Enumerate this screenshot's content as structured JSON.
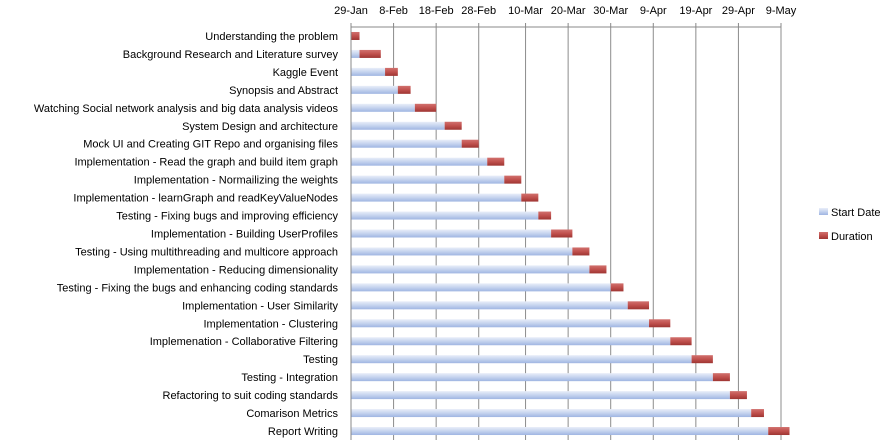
{
  "chart_data": {
    "type": "bar",
    "orientation": "horizontal",
    "stacked": true,
    "x_axis_position": "top",
    "grid": "vertical-major",
    "legend_placement": "right",
    "x_tick_labels": [
      "29-Jan",
      "8-Feb",
      "18-Feb",
      "28-Feb",
      "10-Mar",
      "20-Mar",
      "30-Mar",
      "9-Apr",
      "19-Apr",
      "29-Apr",
      "9-May"
    ],
    "xlim": [
      "29-Jan",
      "9-May"
    ],
    "categories": [
      "Understanding the problem",
      "Background Research and Literature survey",
      "Kaggle Event",
      "Synopsis and Abstract",
      "Watching Social network analysis and big data analysis videos",
      "System Design and architecture",
      "Mock UI and Creating GIT Repo and organising files",
      "Implementation - Read the graph and build item graph",
      "Implementation  - Normailizing the weights",
      "Implementation - learnGraph and readKeyValueNodes",
      "Testing - Fixing bugs and improving efficiency",
      "Implementation  - Building UserProfiles",
      "Testing - Using multithreading and multicore approach",
      "Implementation  - Reducing dimensionality",
      "Testing - Fixing the bugs and enhancing coding standards",
      "Implementation - User Similarity",
      "Implementation  - Clustering",
      "Implemenation - Collaborative Filtering",
      "Testing",
      "Testing  - Integration",
      "Refactoring to suit coding standards",
      "Comarison Metrics",
      "Report Writing"
    ],
    "series": [
      {
        "name": "Start Date",
        "color": "#c5d3ee",
        "values": [
          "29-Jan",
          "31-Jan",
          "6-Feb",
          "9-Feb",
          "13-Feb",
          "20-Feb",
          "24-Feb",
          "1-Mar",
          "5-Mar",
          "9-Mar",
          "13-Mar",
          "16-Mar",
          "21-Mar",
          "25-Mar",
          "30-Mar",
          "3-Apr",
          "8-Apr",
          "13-Apr",
          "18-Apr",
          "23-Apr",
          "27-Apr",
          "2-May",
          "6-May"
        ]
      },
      {
        "name": "Duration",
        "color": "#c0504d",
        "values": [
          2,
          5,
          3,
          3,
          5,
          4,
          4,
          4,
          4,
          4,
          3,
          5,
          4,
          4,
          3,
          5,
          5,
          5,
          5,
          4,
          4,
          3,
          5
        ]
      }
    ]
  }
}
